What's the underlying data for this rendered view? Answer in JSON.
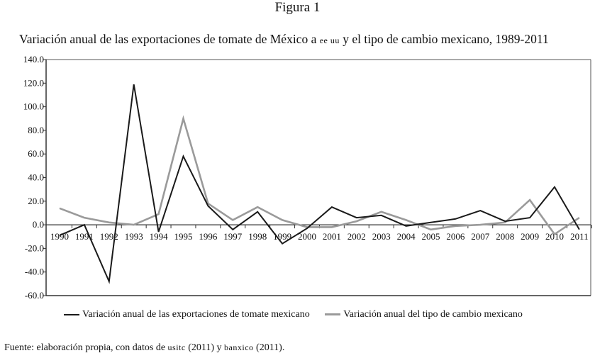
{
  "figure_label": "Figura 1",
  "title_parts": {
    "pre": "Variación anual de las exportaciones de tomate de México a ",
    "sc": "ee uu",
    "post": " y el tipo de cambio mexicano, 1989-2011"
  },
  "source_parts": {
    "pre": "Fuente: elaboración propia, con datos de ",
    "sc1": "usitc",
    "mid": " (2011) y ",
    "sc2": "banxico",
    "post": " (2011)."
  },
  "colors": {
    "series1": "#1a1a1a",
    "series2": "#9a9a9a",
    "axis": "#333333",
    "frame": "#555555"
  },
  "chart_data": {
    "type": "line",
    "title": "Variación anual de las exportaciones de tomate de México a EE UU y el tipo de cambio mexicano, 1989-2011",
    "xlabel": "",
    "ylabel": "",
    "x": [
      "1990",
      "1991",
      "1992",
      "1993",
      "1994",
      "1995",
      "1996",
      "1997",
      "1998",
      "1999",
      "2000",
      "2001",
      "2002",
      "2003",
      "2004",
      "2005",
      "2006",
      "2007",
      "2008",
      "2009",
      "2010",
      "2011"
    ],
    "ylim": [
      -60,
      140
    ],
    "yticks": [
      140,
      120,
      100,
      80,
      60,
      40,
      20,
      0,
      -20,
      -40,
      -60
    ],
    "ytick_labels": [
      "140.0",
      "120.0",
      "100.0",
      "80.0",
      "60.0",
      "40.0",
      "20.0",
      "0.0",
      "-20.0",
      "-40.0",
      "-60.0"
    ],
    "legend_position": "bottom",
    "grid": false,
    "series": [
      {
        "name": "Variación anual de las exportaciones de tomate mexicano",
        "values": [
          -9,
          0,
          -48,
          119,
          -6,
          58,
          16,
          -4,
          11,
          -16,
          -3,
          15,
          6,
          8,
          -1,
          2,
          5,
          12,
          3,
          6,
          32,
          -4
        ]
      },
      {
        "name": "Variación anual del tipo de cambio mexicano",
        "values": [
          14,
          6,
          2,
          0,
          9,
          90,
          18,
          4,
          15,
          4,
          -2,
          -2,
          3,
          11,
          4,
          -4,
          -1,
          0,
          2,
          21,
          -8,
          6
        ]
      }
    ]
  }
}
